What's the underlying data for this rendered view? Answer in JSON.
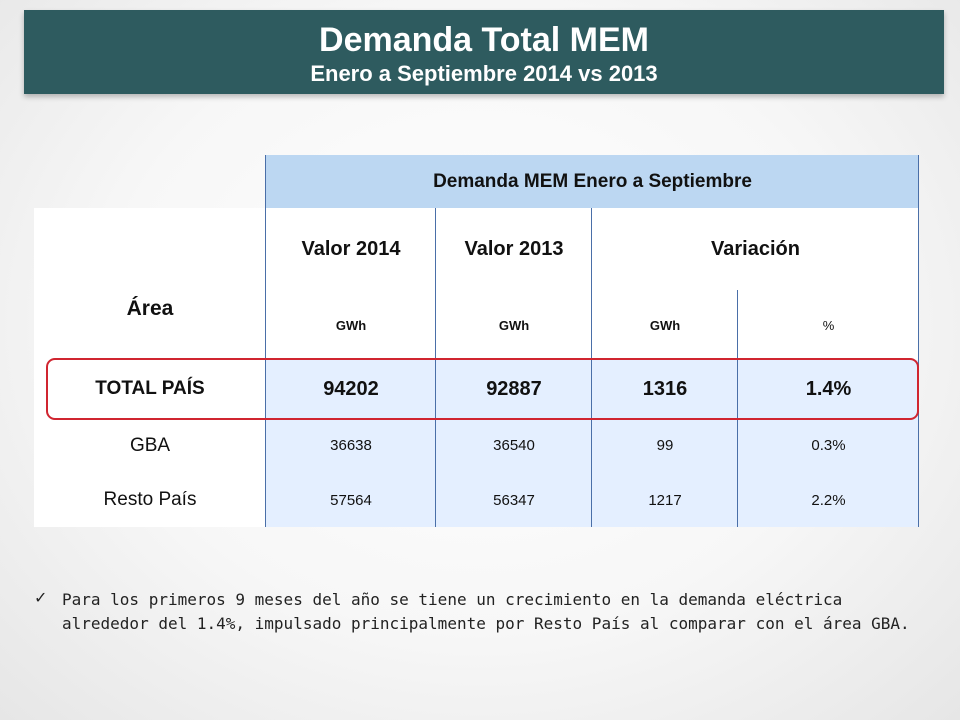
{
  "header": {
    "title": "Demanda Total MEM",
    "subtitle": "Enero a Septiembre 2014 vs 2013"
  },
  "table": {
    "group_header": "Demanda MEM Enero a Septiembre",
    "area_label": "Área",
    "col_2014": "Valor 2014",
    "col_2013": "Valor 2013",
    "col_var": "Variación",
    "units": [
      "GWh",
      "GWh",
      "GWh",
      "%"
    ],
    "rows": [
      {
        "area": "TOTAL PAÍS",
        "v2014": "94202",
        "v2013": "92887",
        "var_gwh": "1316",
        "var_pct": "1.4%"
      },
      {
        "area": "GBA",
        "v2014": "36638",
        "v2013": "36540",
        "var_gwh": "99",
        "var_pct": "0.3%"
      },
      {
        "area": "Resto País",
        "v2014": "57564",
        "v2013": "56347",
        "var_gwh": "1217",
        "var_pct": "2.2%"
      }
    ]
  },
  "bullet": {
    "icon": "check-icon",
    "text": "Para los primeros 9 meses del año se tiene un crecimiento en la demanda eléctrica alrededor del 1.4%, impulsado principalmente por Resto País al comparar con el área GBA."
  },
  "colors": {
    "banner": "#2e5b5f",
    "table_header": "#bcd7f2",
    "table_body": "#e4efff",
    "highlight_outline": "#d02530"
  }
}
